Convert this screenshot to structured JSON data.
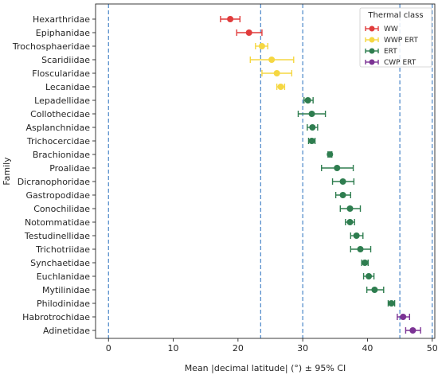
{
  "chart_data": {
    "type": "scatter",
    "xlabel": "Mean |decimal latitude| (°) ± 95% CI",
    "ylabel": "Family",
    "xlim": [
      -2,
      50.4
    ],
    "xticks": [
      0,
      10,
      20,
      30,
      40,
      50
    ],
    "grid": false,
    "reference_lines_x": [
      0,
      23.5,
      30,
      45,
      50
    ],
    "legend": {
      "title": "Thermal class",
      "placement": "top-right",
      "entries": [
        {
          "name": "WW",
          "color": "#e03c3c"
        },
        {
          "name": "WWP ERT",
          "color": "#f5d742"
        },
        {
          "name": "ERT",
          "color": "#2e7d4f"
        },
        {
          "name": "CWP ERT",
          "color": "#7b3294"
        }
      ]
    },
    "families": [
      {
        "name": "Hexarthridae",
        "mean": 18.8,
        "low": 17.3,
        "high": 20.3,
        "class": "WW"
      },
      {
        "name": "Epiphanidae",
        "mean": 21.7,
        "low": 19.8,
        "high": 23.7,
        "class": "WW"
      },
      {
        "name": "Trochosphaeridae",
        "mean": 23.7,
        "low": 22.7,
        "high": 24.6,
        "class": "WWP ERT"
      },
      {
        "name": "Scaridiidae",
        "mean": 25.2,
        "low": 21.9,
        "high": 28.6,
        "class": "WWP ERT"
      },
      {
        "name": "Floscularidae",
        "mean": 26.0,
        "low": 23.7,
        "high": 28.3,
        "class": "WWP ERT"
      },
      {
        "name": "Lecanidae",
        "mean": 26.6,
        "low": 26.0,
        "high": 27.2,
        "class": "WWP ERT"
      },
      {
        "name": "Lepadellidae",
        "mean": 30.8,
        "low": 30.2,
        "high": 31.6,
        "class": "ERT"
      },
      {
        "name": "Collothecidae",
        "mean": 31.4,
        "low": 29.3,
        "high": 33.5,
        "class": "ERT"
      },
      {
        "name": "Asplanchnidae",
        "mean": 31.5,
        "low": 30.7,
        "high": 32.3,
        "class": "ERT"
      },
      {
        "name": "Trichocercidae",
        "mean": 31.4,
        "low": 30.9,
        "high": 31.9,
        "class": "ERT"
      },
      {
        "name": "Brachionidae",
        "mean": 34.2,
        "low": 33.9,
        "high": 34.5,
        "class": "ERT"
      },
      {
        "name": "Proalidae",
        "mean": 35.3,
        "low": 32.9,
        "high": 37.8,
        "class": "ERT"
      },
      {
        "name": "Dicranophoridae",
        "mean": 36.2,
        "low": 34.6,
        "high": 37.9,
        "class": "ERT"
      },
      {
        "name": "Gastropodidae",
        "mean": 36.2,
        "low": 35.1,
        "high": 37.4,
        "class": "ERT"
      },
      {
        "name": "Conochilidae",
        "mean": 37.3,
        "low": 35.8,
        "high": 38.9,
        "class": "ERT"
      },
      {
        "name": "Notommatidae",
        "mean": 37.3,
        "low": 36.6,
        "high": 38.0,
        "class": "ERT"
      },
      {
        "name": "Testudinellidae",
        "mean": 38.3,
        "low": 37.4,
        "high": 39.3,
        "class": "ERT"
      },
      {
        "name": "Trichotriidae",
        "mean": 38.9,
        "low": 37.4,
        "high": 40.5,
        "class": "ERT"
      },
      {
        "name": "Synchaetidae",
        "mean": 39.6,
        "low": 39.1,
        "high": 40.1,
        "class": "ERT"
      },
      {
        "name": "Euchlanidae",
        "mean": 40.2,
        "low": 39.4,
        "high": 41.0,
        "class": "ERT"
      },
      {
        "name": "Mytilinidae",
        "mean": 41.1,
        "low": 39.9,
        "high": 42.5,
        "class": "ERT"
      },
      {
        "name": "Philodinidae",
        "mean": 43.7,
        "low": 43.2,
        "high": 44.2,
        "class": "ERT"
      },
      {
        "name": "Habrotrochidae",
        "mean": 45.5,
        "low": 44.6,
        "high": 46.5,
        "class": "CWP ERT"
      },
      {
        "name": "Adinetidae",
        "mean": 47.0,
        "low": 45.9,
        "high": 48.2,
        "class": "CWP ERT"
      }
    ]
  }
}
